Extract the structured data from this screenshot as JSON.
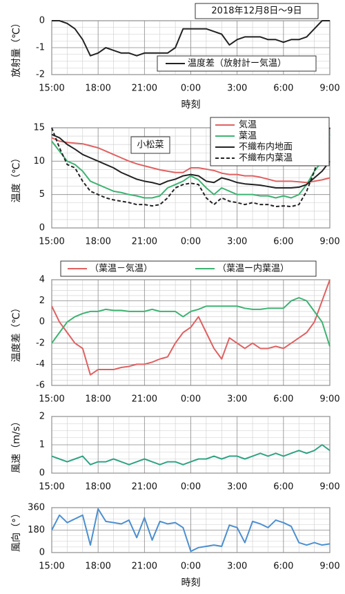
{
  "chart_data": [
    {
      "type": "line",
      "title": "2018年12月8日～9日",
      "ylabel": "放射量（℃）",
      "xlabel": "時刻",
      "legend": "lower right",
      "grid": true,
      "x": [
        15,
        15.5,
        16,
        16.5,
        17,
        17.5,
        18,
        18.5,
        19,
        19.5,
        20,
        20.5,
        21,
        21.5,
        22,
        22.5,
        23,
        23.5,
        24,
        24.5,
        25,
        25.5,
        26,
        26.5,
        27,
        27.5,
        28,
        28.5,
        29,
        29.5,
        30,
        30.5,
        31,
        31.5,
        32,
        32.5,
        33
      ],
      "xlim": [
        15,
        33
      ],
      "xticks": [
        {
          "value": 15,
          "label": "15:00"
        },
        {
          "value": 18,
          "label": "18:00"
        },
        {
          "value": 21,
          "label": "21:00"
        },
        {
          "value": 24,
          "label": "0:00"
        },
        {
          "value": 27,
          "label": "3:00"
        },
        {
          "value": 30,
          "label": "6:00"
        },
        {
          "value": 33,
          "label": "9:00"
        }
      ],
      "ylim": [
        -2,
        0
      ],
      "yticks": [
        0,
        -1,
        -2
      ],
      "series": [
        {
          "name": "温度差（放射計ー気温）",
          "color": "#222222",
          "values": [
            0,
            0,
            -0.1,
            -0.3,
            -0.7,
            -1.3,
            -1.2,
            -1.0,
            -1.1,
            -1.2,
            -1.2,
            -1.3,
            -1.2,
            -1.2,
            -1.2,
            -1.2,
            -1.0,
            -0.3,
            -0.3,
            -0.3,
            -0.3,
            -0.4,
            -0.5,
            -0.9,
            -0.7,
            -0.6,
            -0.6,
            -0.6,
            -0.7,
            -0.7,
            -0.8,
            -0.7,
            -0.7,
            -0.6,
            -0.3,
            0,
            0
          ]
        }
      ]
    },
    {
      "type": "line",
      "ylabel": "温度（℃）",
      "annotation": "小松菜",
      "legend": "upper right",
      "grid": true,
      "x": [
        15,
        15.5,
        16,
        16.5,
        17,
        17.5,
        18,
        18.5,
        19,
        19.5,
        20,
        20.5,
        21,
        21.5,
        22,
        22.5,
        23,
        23.5,
        24,
        24.5,
        25,
        25.5,
        26,
        26.5,
        27,
        27.5,
        28,
        28.5,
        29,
        29.5,
        30,
        30.5,
        31,
        31.5,
        32,
        32.5,
        33
      ],
      "xlim": [
        15,
        33
      ],
      "xticks": [
        {
          "value": 15,
          "label": "15:00"
        },
        {
          "value": 18,
          "label": "18:00"
        },
        {
          "value": 21,
          "label": "21:00"
        },
        {
          "value": 24,
          "label": "0:00"
        },
        {
          "value": 27,
          "label": "3:00"
        },
        {
          "value": 30,
          "label": "6:00"
        },
        {
          "value": 33,
          "label": "9:00"
        }
      ],
      "ylim": [
        0,
        15
      ],
      "yticks": [
        0,
        5,
        10,
        15
      ],
      "series": [
        {
          "name": "気温",
          "color": "#e06060",
          "style": "solid",
          "values": [
            13.5,
            13,
            12.8,
            12.7,
            12.6,
            12.3,
            12,
            11.5,
            11,
            10.5,
            10,
            9.6,
            9.3,
            9,
            8.7,
            8.5,
            8.3,
            8.3,
            9,
            9,
            8.8,
            8.6,
            8.2,
            8,
            8,
            7.8,
            7.8,
            7.6,
            7.3,
            7,
            7,
            7,
            6.9,
            6.8,
            7,
            7.2,
            7.5
          ]
        },
        {
          "name": "葉温",
          "color": "#3cb371",
          "style": "solid",
          "values": [
            13,
            11.5,
            10,
            9.5,
            8.5,
            7,
            6.5,
            6,
            5.5,
            5.3,
            5,
            4.8,
            4.5,
            4.5,
            4.8,
            6,
            6.5,
            7,
            7.8,
            7.2,
            6,
            5,
            6,
            5.5,
            5,
            5,
            5,
            4.8,
            4.8,
            4.5,
            4.8,
            4.5,
            5,
            6.5,
            8.5,
            10,
            14
          ]
        },
        {
          "name": "不織布内地面",
          "color": "#222222",
          "style": "solid",
          "values": [
            14,
            13.5,
            12.5,
            11.8,
            11,
            10.5,
            10,
            9.5,
            9,
            8.3,
            7.8,
            7.3,
            7,
            6.8,
            6.5,
            7,
            7.3,
            7.8,
            8,
            7.8,
            7,
            6.8,
            7.5,
            7.2,
            6.8,
            6.6,
            6.5,
            6.4,
            6.2,
            6,
            6,
            6,
            6.1,
            6.5,
            7.5,
            8.5,
            10
          ]
        },
        {
          "name": "不織布内葉温",
          "color": "#222222",
          "style": "dashed",
          "values": [
            15,
            12,
            9.5,
            9,
            7,
            5.5,
            5,
            4.5,
            4.2,
            4,
            3.8,
            3.5,
            3.5,
            3.3,
            3.5,
            4.5,
            6,
            6.5,
            6.7,
            6.5,
            4.5,
            3.5,
            4.5,
            4,
            3.8,
            3.5,
            3.8,
            3.5,
            3.5,
            3.2,
            3.3,
            3.2,
            3.5,
            5.5,
            8.5,
            12,
            15
          ]
        }
      ]
    },
    {
      "type": "line",
      "ylabel": "温度差（℃）",
      "legend": "top",
      "grid": true,
      "x": [
        15,
        15.5,
        16,
        16.5,
        17,
        17.5,
        18,
        18.5,
        19,
        19.5,
        20,
        20.5,
        21,
        21.5,
        22,
        22.5,
        23,
        23.5,
        24,
        24.5,
        25,
        25.5,
        26,
        26.5,
        27,
        27.5,
        28,
        28.5,
        29,
        29.5,
        30,
        30.5,
        31,
        31.5,
        32,
        32.5,
        33
      ],
      "xlim": [
        15,
        33
      ],
      "xticks": [
        {
          "value": 15,
          "label": "15:00"
        },
        {
          "value": 18,
          "label": "18:00"
        },
        {
          "value": 21,
          "label": "21:00"
        },
        {
          "value": 24,
          "label": "0:00"
        },
        {
          "value": 27,
          "label": "3:00"
        },
        {
          "value": 30,
          "label": "6:00"
        },
        {
          "value": 33,
          "label": "9:00"
        }
      ],
      "ylim": [
        -6,
        4
      ],
      "yticks": [
        -6,
        -4,
        -2,
        0,
        2,
        4
      ],
      "series": [
        {
          "name": "（葉温－気温）",
          "color": "#e06060",
          "style": "solid",
          "values": [
            1.5,
            0,
            -1,
            -2,
            -2.5,
            -5,
            -4.5,
            -4.5,
            -4.5,
            -4.3,
            -4.2,
            -4,
            -4,
            -3.8,
            -3.5,
            -3.3,
            -2,
            -1,
            -0.5,
            0.5,
            -1,
            -2.5,
            -3.5,
            -1.5,
            -2,
            -2.5,
            -2,
            -2.5,
            -2.5,
            -2.3,
            -2.5,
            -2,
            -1.5,
            -1,
            0,
            2,
            4
          ]
        },
        {
          "name": "（葉温ー内葉温）",
          "color": "#3cb371",
          "style": "solid",
          "values": [
            -2,
            -1,
            0,
            0.5,
            0.8,
            1,
            1,
            1.2,
            1.1,
            1.1,
            1,
            1,
            1,
            1.2,
            1,
            1,
            1,
            0.5,
            1,
            1.2,
            1.5,
            1.5,
            1.5,
            1.5,
            1.5,
            1.3,
            1.2,
            1.2,
            1.3,
            1.3,
            1.3,
            2,
            2.3,
            2,
            1,
            0,
            -2.3
          ]
        }
      ]
    },
    {
      "type": "line",
      "ylabel": "風速（m/s）",
      "grid": true,
      "color": "#2fa383",
      "x": [
        15,
        15.5,
        16,
        16.5,
        17,
        17.5,
        18,
        18.5,
        19,
        19.5,
        20,
        20.5,
        21,
        21.5,
        22,
        22.5,
        23,
        23.5,
        24,
        24.5,
        25,
        25.5,
        26,
        26.5,
        27,
        27.5,
        28,
        28.5,
        29,
        29.5,
        30,
        30.5,
        31,
        31.5,
        32,
        32.5,
        33
      ],
      "xlim": [
        15,
        33
      ],
      "xticks": [
        {
          "value": 15,
          "label": "15:00"
        },
        {
          "value": 18,
          "label": "18:00"
        },
        {
          "value": 21,
          "label": "21:00"
        },
        {
          "value": 24,
          "label": "0:00"
        },
        {
          "value": 27,
          "label": "3:00"
        },
        {
          "value": 30,
          "label": "6:00"
        },
        {
          "value": 33,
          "label": "9:00"
        }
      ],
      "ylim": [
        0,
        2
      ],
      "yticks": [
        0,
        1,
        2
      ],
      "values": [
        0.6,
        0.5,
        0.4,
        0.5,
        0.6,
        0.3,
        0.4,
        0.4,
        0.5,
        0.4,
        0.3,
        0.4,
        0.5,
        0.4,
        0.3,
        0.4,
        0.4,
        0.3,
        0.4,
        0.5,
        0.5,
        0.6,
        0.5,
        0.6,
        0.6,
        0.5,
        0.6,
        0.7,
        0.6,
        0.7,
        0.6,
        0.7,
        0.8,
        0.7,
        0.8,
        1.0,
        0.8
      ]
    },
    {
      "type": "line",
      "ylabel": "風向（°）",
      "xlabel": "時刻",
      "grid": true,
      "color": "#4a8fd0",
      "x": [
        15,
        15.5,
        16,
        16.5,
        17,
        17.5,
        18,
        18.5,
        19,
        19.5,
        20,
        20.5,
        21,
        21.5,
        22,
        22.5,
        23,
        23.5,
        24,
        24.5,
        25,
        25.5,
        26,
        26.5,
        27,
        27.5,
        28,
        28.5,
        29,
        29.5,
        30,
        30.5,
        31,
        31.5,
        32,
        32.5,
        33
      ],
      "xlim": [
        15,
        33
      ],
      "xticks": [
        {
          "value": 15,
          "label": "15:00"
        },
        {
          "value": 18,
          "label": "18:00"
        },
        {
          "value": 21,
          "label": "21:00"
        },
        {
          "value": 24,
          "label": "0:00"
        },
        {
          "value": 27,
          "label": "3:00"
        },
        {
          "value": 30,
          "label": "6:00"
        },
        {
          "value": 33,
          "label": "9:00"
        }
      ],
      "ylim": [
        0,
        360
      ],
      "yticks": [
        0,
        180,
        360
      ],
      "values": [
        180,
        300,
        240,
        270,
        300,
        60,
        350,
        250,
        240,
        230,
        260,
        120,
        280,
        100,
        250,
        230,
        240,
        200,
        10,
        40,
        50,
        60,
        50,
        220,
        200,
        80,
        250,
        230,
        200,
        260,
        240,
        210,
        80,
        60,
        80,
        60,
        70
      ]
    }
  ]
}
